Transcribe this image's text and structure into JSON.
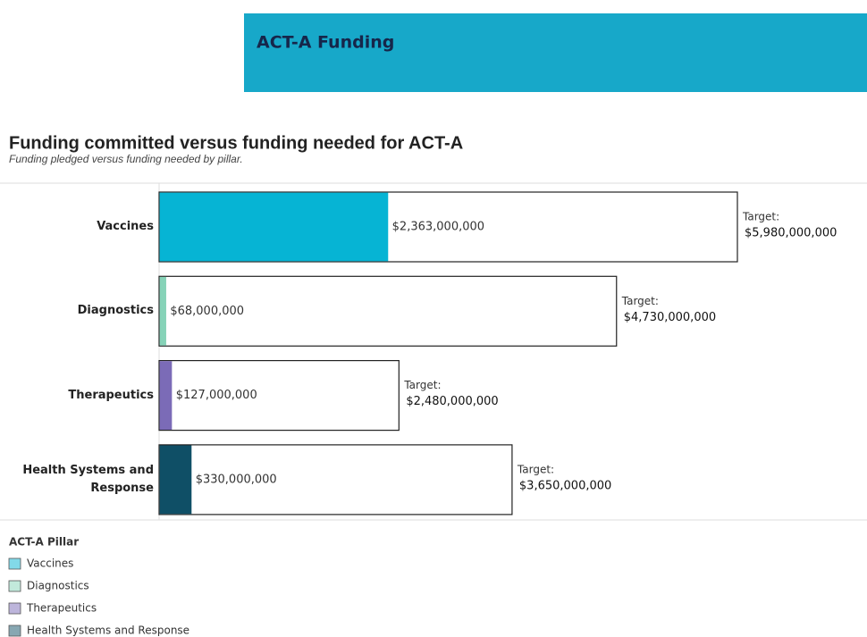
{
  "header": {
    "title": "ACT-A Funding"
  },
  "chart_data": {
    "type": "bar",
    "title": "Funding committed versus funding needed for ACT-A",
    "subtitle": "Funding pledged versus funding needed by pillar.",
    "categories": [
      "Vaccines",
      "Diagnostics",
      "Therapeutics",
      "Health Systems and Response"
    ],
    "values": [
      2363000000,
      68000000,
      127000000,
      330000000
    ],
    "value_labels": [
      "$2,363,000,000",
      "$68,000,000",
      "$127,000,000",
      "$330,000,000"
    ],
    "colors": [
      "#06b4d4",
      "#86d3b8",
      "#7b6bb7",
      "#0f4f66"
    ],
    "target_label": "Target:",
    "targets": [
      5980000000,
      4730000000,
      2480000000,
      3650000000
    ],
    "target_value_labels": [
      "$5,980,000,000",
      "$4,730,000,000",
      "$2,480,000,000",
      "$3,650,000,000"
    ],
    "legend_title": "ACT-A Pillar"
  }
}
